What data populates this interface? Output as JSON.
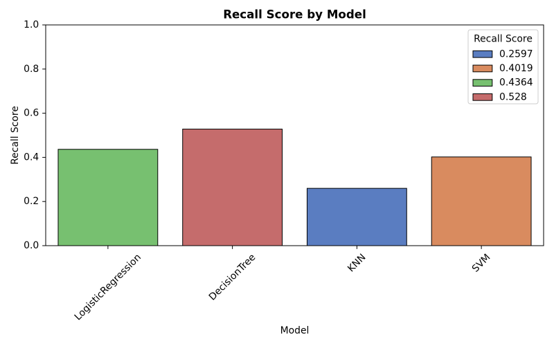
{
  "chart_data": {
    "type": "bar",
    "title": "Recall Score by Model",
    "xlabel": "Model",
    "ylabel": "Recall Score",
    "categories": [
      "LogisticRegression",
      "DecisionTree",
      "KNN",
      "SVM"
    ],
    "values": [
      0.4364,
      0.528,
      0.2597,
      0.4019
    ],
    "bar_colors": [
      "#77c070",
      "#c56c6c",
      "#5a7dc1",
      "#d98b5f"
    ],
    "bar_edge_color": "#000000",
    "ylim": [
      0,
      1
    ],
    "yticks": [
      0,
      0.2,
      0.4,
      0.6,
      0.8,
      1.0
    ],
    "ytick_labels": [
      "0.0",
      "0.2",
      "0.4",
      "0.6",
      "0.8",
      "1.0"
    ],
    "grid": false,
    "legend": {
      "title": "Recall Score",
      "placement": "top-right",
      "entries": [
        {
          "label": "0.2597",
          "color": "#5a7dc1"
        },
        {
          "label": "0.4019",
          "color": "#d98b5f"
        },
        {
          "label": "0.4364",
          "color": "#77c070"
        },
        {
          "label": "0.528",
          "color": "#c56c6c"
        }
      ]
    }
  }
}
